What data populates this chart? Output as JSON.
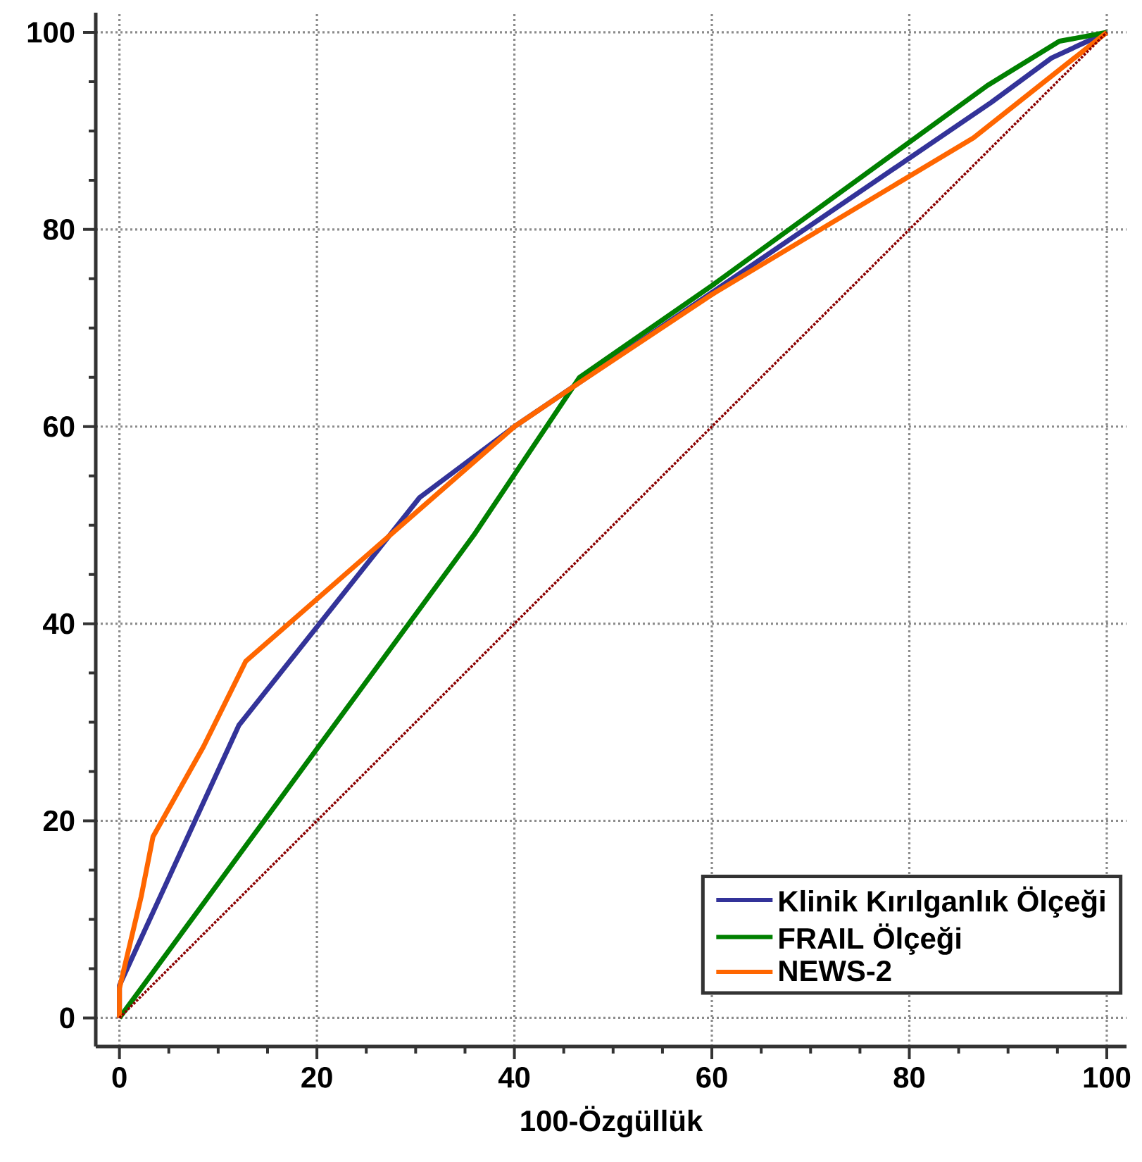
{
  "chart_data": {
    "type": "line",
    "xlabel": "100-Özgüllük",
    "xlim": [
      -2.4,
      102
    ],
    "ylim": [
      -2.9,
      102
    ],
    "xticks": [
      0,
      20,
      40,
      60,
      80,
      100
    ],
    "yticks": [
      0,
      20,
      40,
      60,
      80,
      100
    ],
    "grid": true,
    "legend": "bottom right",
    "marker": "none",
    "series": [
      {
        "name": "Klinik Kırılganlık Ölçeği",
        "color": "#333399",
        "x": [
          0,
          0,
          12.1,
          30.4,
          40,
          60,
          88.3,
          94.4,
          100
        ],
        "values": [
          0,
          3.3,
          29.7,
          52.8,
          60,
          73.6,
          92.9,
          97.4,
          100
        ]
      },
      {
        "name": "FRAIL Ölçeği",
        "color": "#008000",
        "x": [
          0,
          35.9,
          46.6,
          60,
          87.9,
          95.2,
          100
        ],
        "values": [
          0,
          49,
          65,
          74.3,
          94.6,
          99.1,
          100
        ]
      },
      {
        "name": "NEWS-2",
        "color": "#ff6600",
        "x": [
          0,
          0,
          2.2,
          3.4,
          8.5,
          12.8,
          40,
          46.8,
          60,
          86.5,
          100
        ],
        "values": [
          0,
          3,
          12.3,
          18.4,
          27.5,
          36.2,
          60,
          64.6,
          73.4,
          89.3,
          100
        ]
      },
      {
        "type": "line",
        "line_style": "dotted",
        "color": "#8b0000",
        "x": [
          0,
          100
        ],
        "values": [
          0,
          100
        ]
      }
    ]
  }
}
